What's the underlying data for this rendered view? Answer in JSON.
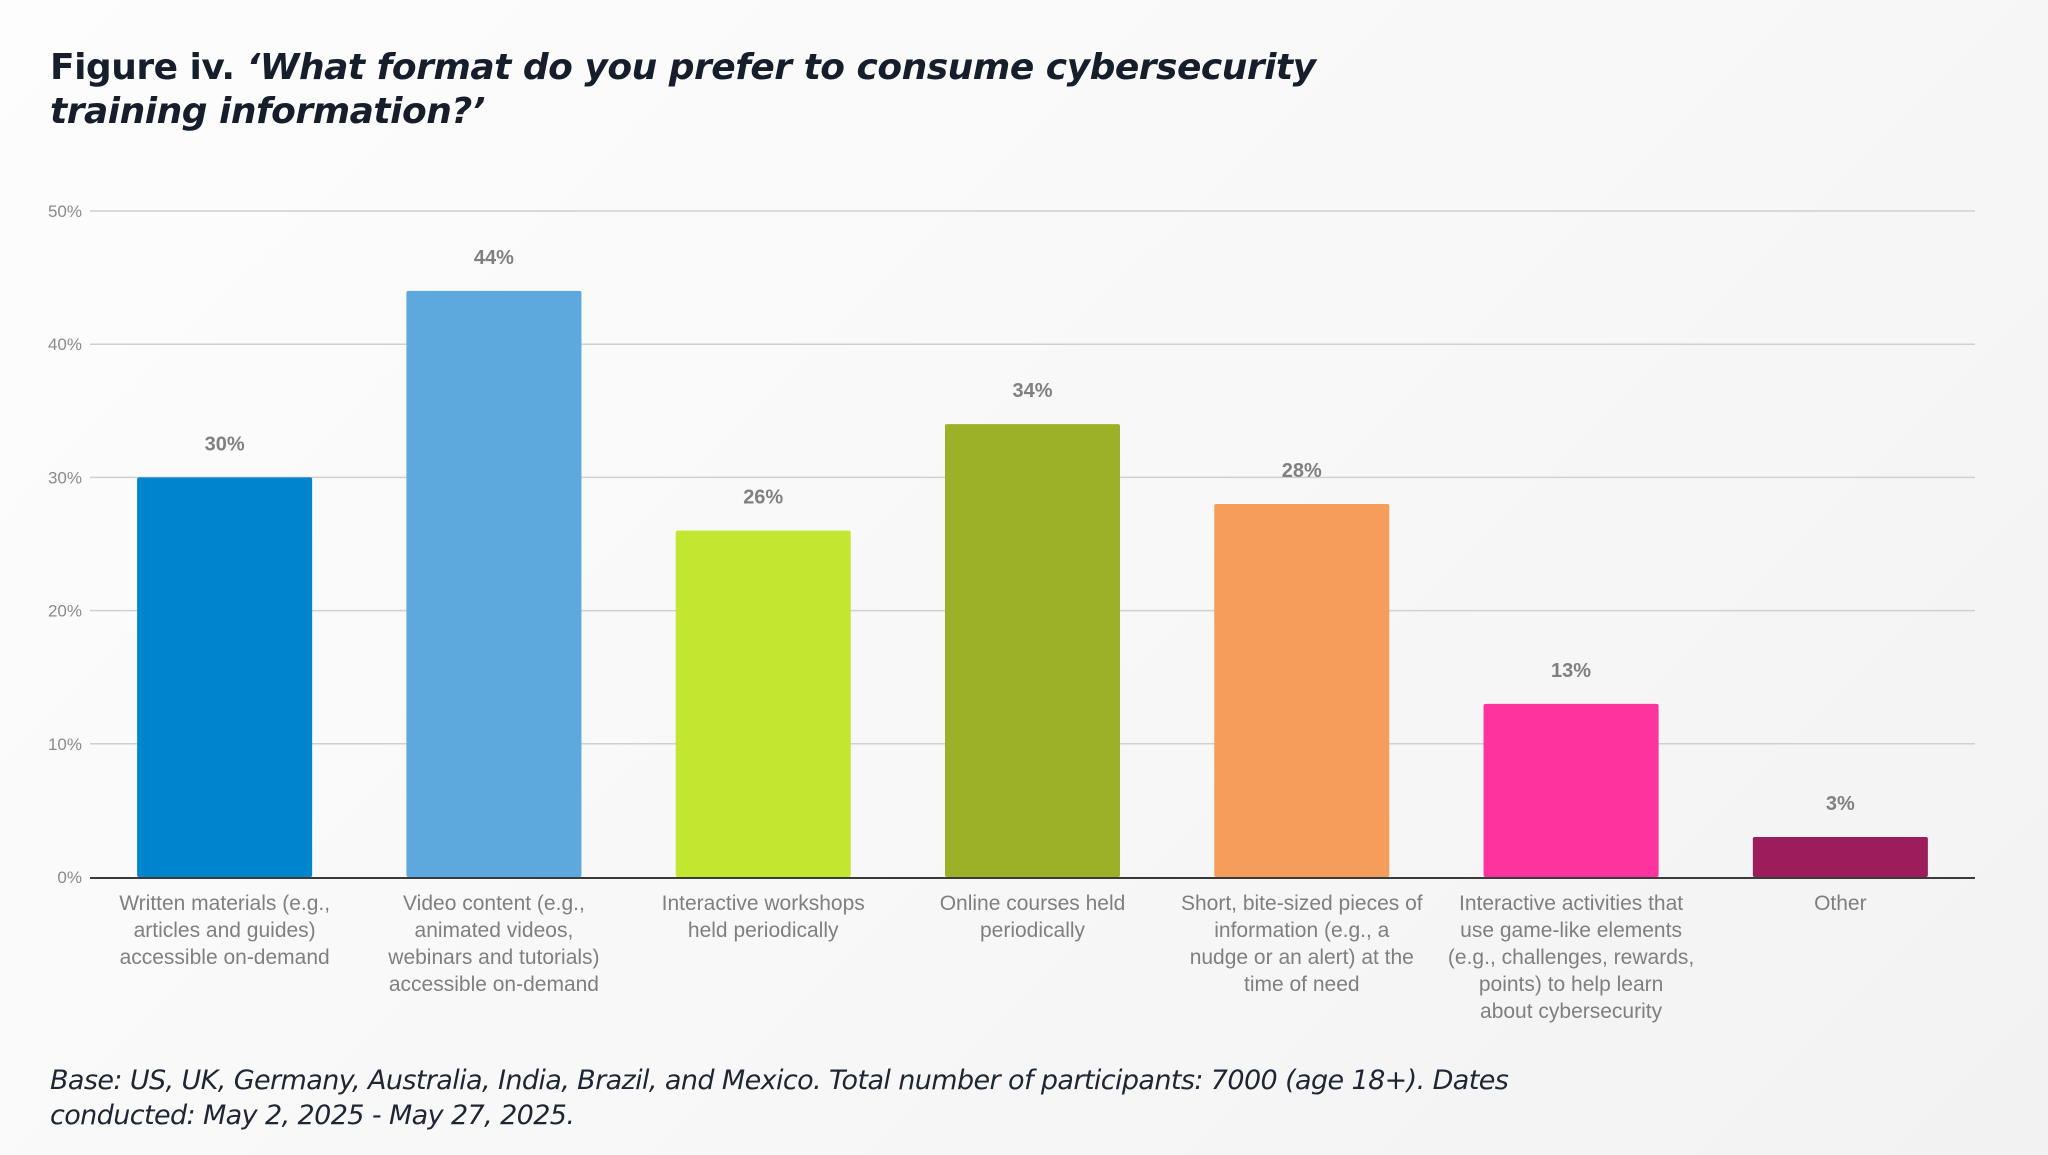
{
  "header": {
    "figure_label": "Figure iv. ",
    "question": "‘What format do you prefer to consume cybersecurity training information?’"
  },
  "footnote": "Base: US, UK, Germany, Australia, India, Brazil, and Mexico. Total number of participants: 7000 (age 18+). Dates conducted: May 2, 2025 - May 27, 2025.",
  "chart_data": {
    "type": "bar",
    "title": "What format do you prefer to consume cybersecurity training information?",
    "xlabel": "",
    "ylabel": "",
    "ylim": [
      0,
      50
    ],
    "yticks": [
      0,
      10,
      20,
      30,
      40,
      50
    ],
    "ytick_labels": [
      "0%",
      "10%",
      "20%",
      "30%",
      "40%",
      "50%"
    ],
    "grid": true,
    "legend": "none",
    "categories": [
      [
        "Written materials (e.g.,",
        "articles and guides)",
        "accessible on-demand"
      ],
      [
        "Video content (e.g.,",
        "animated videos,",
        "webinars and tutorials)",
        "accessible on-demand"
      ],
      [
        "Interactive workshops",
        "held periodically"
      ],
      [
        "Online courses held",
        "periodically"
      ],
      [
        "Short, bite-sized pieces of",
        "information (e.g., a",
        "nudge or an alert) at the",
        "time of need"
      ],
      [
        "Interactive activities that",
        "use game-like elements",
        "(e.g., challenges, rewards,",
        "points) to help learn",
        "about cybersecurity"
      ],
      [
        "Other"
      ]
    ],
    "values": [
      30,
      44,
      26,
      34,
      28,
      13,
      3
    ],
    "value_labels": [
      "30%",
      "44%",
      "26%",
      "34%",
      "28%",
      "13%",
      "3%"
    ],
    "colors": [
      "#0085cc",
      "#5da9dd",
      "#c3e631",
      "#9db128",
      "#f59e5c",
      "#ff339d",
      "#9b1d5c"
    ],
    "axis_color": "#3a3a3a",
    "grid_color": "#d0d0d0"
  }
}
